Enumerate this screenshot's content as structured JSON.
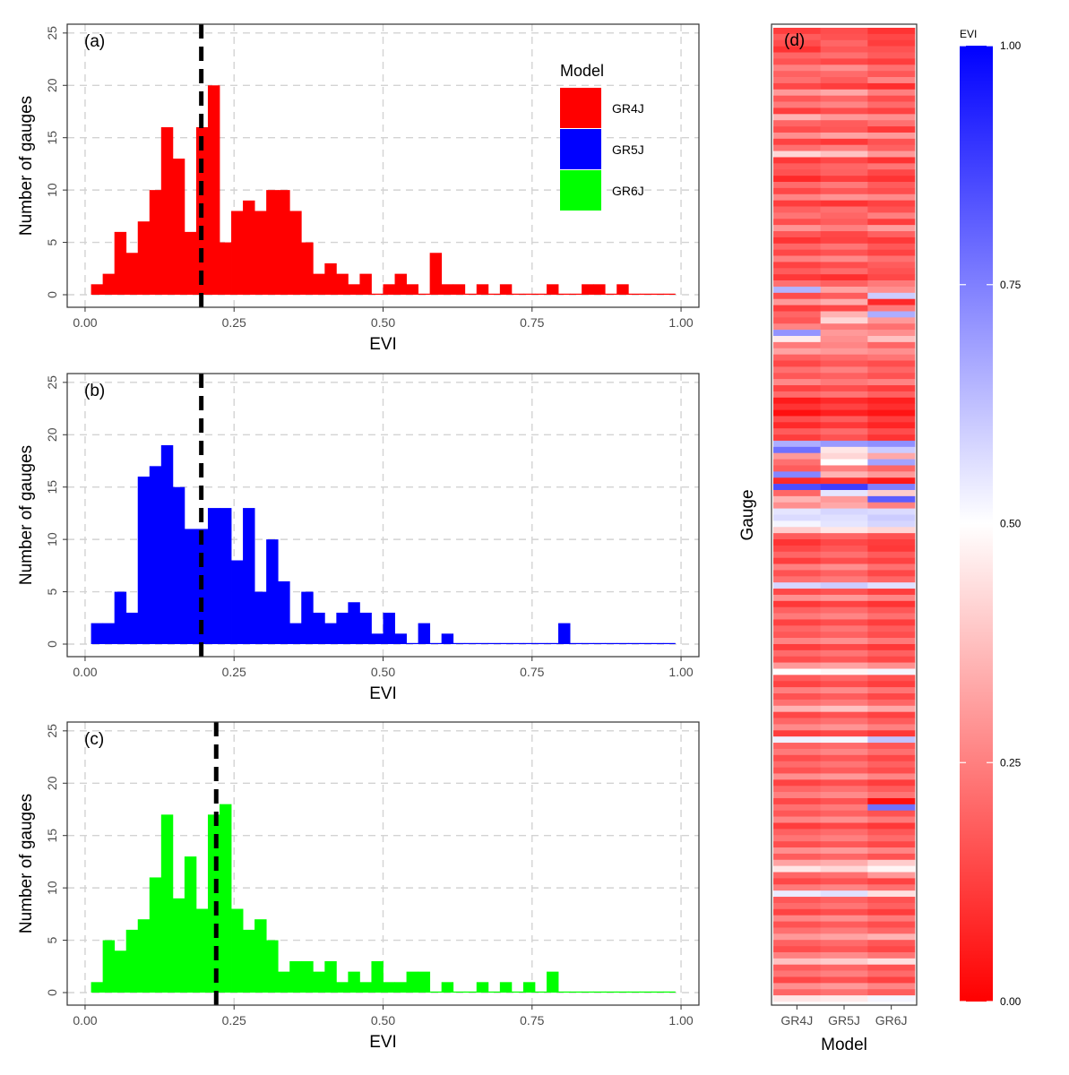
{
  "chart_data": [
    {
      "panel": "(a)",
      "type": "bar",
      "xlabel": "EVI",
      "ylabel": "Number of gauges",
      "xlim": [
        0,
        1
      ],
      "ylim": [
        0,
        25
      ],
      "x_ticks": [
        "0.00",
        "0.25",
        "0.50",
        "0.75",
        "1.00"
      ],
      "y_ticks": [
        "0",
        "5",
        "10",
        "15",
        "20",
        "25"
      ],
      "bin_start": 0.01,
      "bin_width": 0.0196,
      "counts": [
        1,
        2,
        6,
        4,
        7,
        10,
        16,
        13,
        6,
        16,
        20,
        5,
        8,
        9,
        8,
        10,
        10,
        8,
        5,
        2,
        3,
        2,
        1,
        2,
        0,
        1,
        2,
        1,
        0,
        4,
        1,
        1,
        0,
        1,
        0,
        1,
        0,
        0,
        0,
        1,
        0,
        0,
        1,
        1,
        0,
        1,
        0,
        0,
        0,
        0
      ],
      "color": "#ff0000",
      "vline": 0.195,
      "grid": true,
      "legend": {
        "title": "Model",
        "entries": [
          {
            "label": "GR4J",
            "color": "#ff0000"
          },
          {
            "label": "GR5J",
            "color": "#0000ff"
          },
          {
            "label": "GR6J",
            "color": "#00ff00"
          }
        ]
      }
    },
    {
      "panel": "(b)",
      "type": "bar",
      "xlabel": "EVI",
      "ylabel": "Number of gauges",
      "xlim": [
        0,
        1
      ],
      "ylim": [
        0,
        25
      ],
      "x_ticks": [
        "0.00",
        "0.25",
        "0.50",
        "0.75",
        "1.00"
      ],
      "y_ticks": [
        "0",
        "5",
        "10",
        "15",
        "20",
        "25"
      ],
      "bin_start": 0.01,
      "bin_width": 0.0196,
      "counts": [
        2,
        2,
        5,
        3,
        16,
        17,
        19,
        15,
        11,
        11,
        13,
        13,
        8,
        13,
        5,
        10,
        6,
        2,
        5,
        3,
        2,
        3,
        4,
        3,
        1,
        3,
        1,
        0,
        2,
        0,
        1,
        0,
        0,
        0,
        0,
        0,
        0,
        0,
        0,
        0,
        2,
        0,
        0,
        0,
        0,
        0,
        0,
        0,
        0,
        0
      ],
      "color": "#0000ff",
      "vline": 0.195,
      "grid": true
    },
    {
      "panel": "(c)",
      "type": "bar",
      "xlabel": "EVI",
      "ylabel": "Number of gauges",
      "xlim": [
        0,
        1
      ],
      "ylim": [
        0,
        25
      ],
      "x_ticks": [
        "0.00",
        "0.25",
        "0.50",
        "0.75",
        "1.00"
      ],
      "y_ticks": [
        "0",
        "5",
        "10",
        "15",
        "20",
        "25"
      ],
      "bin_start": 0.01,
      "bin_width": 0.0196,
      "counts": [
        1,
        5,
        4,
        6,
        7,
        11,
        17,
        9,
        13,
        8,
        17,
        18,
        8,
        6,
        7,
        5,
        2,
        3,
        3,
        2,
        3,
        1,
        2,
        1,
        3,
        1,
        1,
        2,
        2,
        0,
        1,
        0,
        0,
        1,
        0,
        1,
        0,
        1,
        0,
        2,
        0,
        0,
        0,
        0,
        0,
        0,
        0,
        0,
        0,
        0
      ],
      "color": "#00ff00",
      "vline": 0.22,
      "grid": true
    },
    {
      "panel": "(d)",
      "type": "heatmap",
      "xlabel": "Model",
      "ylabel": "Gauge",
      "categories": [
        "GR4J",
        "GR5J",
        "GR6J"
      ],
      "colorbar": {
        "title": "EVI",
        "ticks": [
          "0.00",
          "0.25",
          "0.50",
          "0.75",
          "1.00"
        ],
        "low_color": "#ff0000",
        "mid_color": "#ffffff",
        "high_color": "#0000ff",
        "range": [
          0,
          1
        ]
      },
      "rows": [
        [
          0.12,
          0.15,
          0.1
        ],
        [
          0.18,
          0.16,
          0.14
        ],
        [
          0.15,
          0.2,
          0.12
        ],
        [
          0.1,
          0.17,
          0.16
        ],
        [
          0.2,
          0.22,
          0.18
        ],
        [
          0.16,
          0.14,
          0.12
        ],
        [
          0.25,
          0.28,
          0.22
        ],
        [
          0.19,
          0.21,
          0.17
        ],
        [
          0.22,
          0.18,
          0.26
        ],
        [
          0.14,
          0.12,
          0.09
        ],
        [
          0.3,
          0.33,
          0.25
        ],
        [
          0.17,
          0.2,
          0.15
        ],
        [
          0.24,
          0.26,
          0.21
        ],
        [
          0.12,
          0.15,
          0.13
        ],
        [
          0.35,
          0.3,
          0.28
        ],
        [
          0.2,
          0.18,
          0.22
        ],
        [
          0.15,
          0.17,
          0.11
        ],
        [
          0.28,
          0.32,
          0.3
        ],
        [
          0.13,
          0.11,
          0.16
        ],
        [
          0.22,
          0.25,
          0.19
        ],
        [
          0.42,
          0.38,
          0.3
        ],
        [
          0.11,
          0.14,
          0.1
        ],
        [
          0.18,
          0.2,
          0.23
        ],
        [
          0.16,
          0.19,
          0.14
        ],
        [
          0.08,
          0.12,
          0.1
        ],
        [
          0.21,
          0.24,
          0.18
        ],
        [
          0.14,
          0.17,
          0.15
        ],
        [
          0.26,
          0.29,
          0.27
        ],
        [
          0.12,
          0.1,
          0.13
        ],
        [
          0.19,
          0.22,
          0.16
        ],
        [
          0.23,
          0.2,
          0.25
        ],
        [
          0.15,
          0.18,
          0.12
        ],
        [
          0.29,
          0.25,
          0.31
        ],
        [
          0.17,
          0.14,
          0.19
        ],
        [
          0.1,
          0.13,
          0.11
        ],
        [
          0.2,
          0.23,
          0.17
        ],
        [
          0.14,
          0.16,
          0.13
        ],
        [
          0.25,
          0.27,
          0.22
        ],
        [
          0.13,
          0.15,
          0.18
        ],
        [
          0.18,
          0.21,
          0.16
        ],
        [
          0.11,
          0.09,
          0.14
        ],
        [
          0.22,
          0.19,
          0.24
        ],
        [
          0.65,
          0.32,
          0.28
        ],
        [
          0.15,
          0.18,
          0.6
        ],
        [
          0.3,
          0.34,
          0.08
        ],
        [
          0.12,
          0.14,
          0.24
        ],
        [
          0.2,
          0.35,
          0.66
        ],
        [
          0.17,
          0.42,
          0.3
        ],
        [
          0.26,
          0.24,
          0.22
        ],
        [
          0.71,
          0.3,
          0.28
        ],
        [
          0.46,
          0.28,
          0.38
        ],
        [
          0.24,
          0.26,
          0.2
        ],
        [
          0.32,
          0.3,
          0.28
        ],
        [
          0.19,
          0.21,
          0.23
        ],
        [
          0.14,
          0.17,
          0.15
        ],
        [
          0.22,
          0.25,
          0.2
        ],
        [
          0.17,
          0.19,
          0.16
        ],
        [
          0.27,
          0.24,
          0.26
        ],
        [
          0.13,
          0.15,
          0.12
        ],
        [
          0.21,
          0.23,
          0.19
        ],
        [
          0.05,
          0.08,
          0.06
        ],
        [
          0.1,
          0.13,
          0.09
        ],
        [
          0.03,
          0.06,
          0.04
        ],
        [
          0.15,
          0.18,
          0.12
        ],
        [
          0.08,
          0.11,
          0.07
        ],
        [
          0.18,
          0.21,
          0.15
        ],
        [
          0.12,
          0.16,
          0.1
        ],
        [
          0.66,
          0.7,
          0.72
        ],
        [
          0.78,
          0.45,
          0.6
        ],
        [
          0.3,
          0.42,
          0.33
        ],
        [
          0.22,
          0.5,
          0.68
        ],
        [
          0.18,
          0.25,
          0.2
        ],
        [
          0.74,
          0.35,
          0.3
        ],
        [
          0.08,
          0.1,
          0.05
        ],
        [
          0.85,
          0.88,
          0.75
        ],
        [
          0.2,
          0.55,
          0.4
        ],
        [
          0.35,
          0.3,
          0.82
        ],
        [
          0.28,
          0.33,
          0.25
        ],
        [
          0.55,
          0.58,
          0.57
        ],
        [
          0.57,
          0.56,
          0.6
        ],
        [
          0.52,
          0.55,
          0.58
        ],
        [
          0.4,
          0.45,
          0.42
        ],
        [
          0.18,
          0.2,
          0.16
        ],
        [
          0.1,
          0.14,
          0.12
        ],
        [
          0.14,
          0.17,
          0.11
        ],
        [
          0.2,
          0.22,
          0.18
        ],
        [
          0.12,
          0.15,
          0.13
        ],
        [
          0.25,
          0.28,
          0.22
        ],
        [
          0.16,
          0.19,
          0.14
        ],
        [
          0.22,
          0.24,
          0.2
        ],
        [
          0.58,
          0.6,
          0.56
        ],
        [
          0.14,
          0.16,
          0.12
        ],
        [
          0.28,
          0.3,
          0.26
        ],
        [
          0.11,
          0.13,
          0.1
        ],
        [
          0.19,
          0.21,
          0.17
        ],
        [
          0.24,
          0.26,
          0.22
        ],
        [
          0.13,
          0.15,
          0.12
        ],
        [
          0.2,
          0.23,
          0.18
        ],
        [
          0.17,
          0.19,
          0.15
        ],
        [
          0.26,
          0.28,
          0.24
        ],
        [
          0.12,
          0.14,
          0.11
        ],
        [
          0.21,
          0.23,
          0.19
        ],
        [
          0.15,
          0.17,
          0.14
        ],
        [
          0.3,
          0.32,
          0.28
        ],
        [
          0.5,
          0.48,
          0.52
        ],
        [
          0.18,
          0.2,
          0.16
        ],
        [
          0.13,
          0.15,
          0.12
        ],
        [
          0.25,
          0.27,
          0.23
        ],
        [
          0.16,
          0.18,
          0.14
        ],
        [
          0.22,
          0.24,
          0.2
        ],
        [
          0.35,
          0.38,
          0.33
        ],
        [
          0.14,
          0.16,
          0.13
        ],
        [
          0.2,
          0.22,
          0.18
        ],
        [
          0.27,
          0.29,
          0.25
        ],
        [
          0.12,
          0.14,
          0.11
        ],
        [
          0.53,
          0.52,
          0.62
        ],
        [
          0.19,
          0.21,
          0.17
        ],
        [
          0.24,
          0.26,
          0.22
        ],
        [
          0.15,
          0.17,
          0.14
        ],
        [
          0.21,
          0.23,
          0.19
        ],
        [
          0.16,
          0.18,
          0.15
        ],
        [
          0.28,
          0.3,
          0.26
        ],
        [
          0.13,
          0.15,
          0.12
        ],
        [
          0.2,
          0.22,
          0.18
        ],
        [
          0.25,
          0.27,
          0.23
        ],
        [
          0.14,
          0.16,
          0.03
        ],
        [
          0.22,
          0.24,
          0.78
        ],
        [
          0.17,
          0.19,
          0.16
        ],
        [
          0.26,
          0.28,
          0.24
        ],
        [
          0.12,
          0.14,
          0.11
        ],
        [
          0.19,
          0.21,
          0.17
        ],
        [
          0.23,
          0.25,
          0.21
        ],
        [
          0.15,
          0.17,
          0.14
        ],
        [
          0.28,
          0.3,
          0.26
        ],
        [
          0.18,
          0.2,
          0.16
        ],
        [
          0.32,
          0.34,
          0.4
        ],
        [
          0.45,
          0.42,
          0.48
        ],
        [
          0.2,
          0.22,
          0.3
        ],
        [
          0.14,
          0.16,
          0.13
        ],
        [
          0.24,
          0.26,
          0.22
        ],
        [
          0.54,
          0.56,
          0.44
        ],
        [
          0.17,
          0.19,
          0.16
        ],
        [
          0.21,
          0.23,
          0.19
        ],
        [
          0.13,
          0.15,
          0.12
        ],
        [
          0.26,
          0.28,
          0.24
        ],
        [
          0.16,
          0.18,
          0.15
        ],
        [
          0.22,
          0.24,
          0.2
        ],
        [
          0.3,
          0.32,
          0.35
        ],
        [
          0.19,
          0.21,
          0.17
        ],
        [
          0.15,
          0.17,
          0.14
        ],
        [
          0.25,
          0.27,
          0.23
        ],
        [
          0.38,
          0.4,
          0.44
        ],
        [
          0.18,
          0.2,
          0.16
        ],
        [
          0.23,
          0.25,
          0.21
        ],
        [
          0.14,
          0.16,
          0.13
        ],
        [
          0.28,
          0.3,
          0.26
        ],
        [
          0.2,
          0.22,
          0.18
        ],
        [
          0.45,
          0.46,
          0.52
        ]
      ]
    }
  ]
}
